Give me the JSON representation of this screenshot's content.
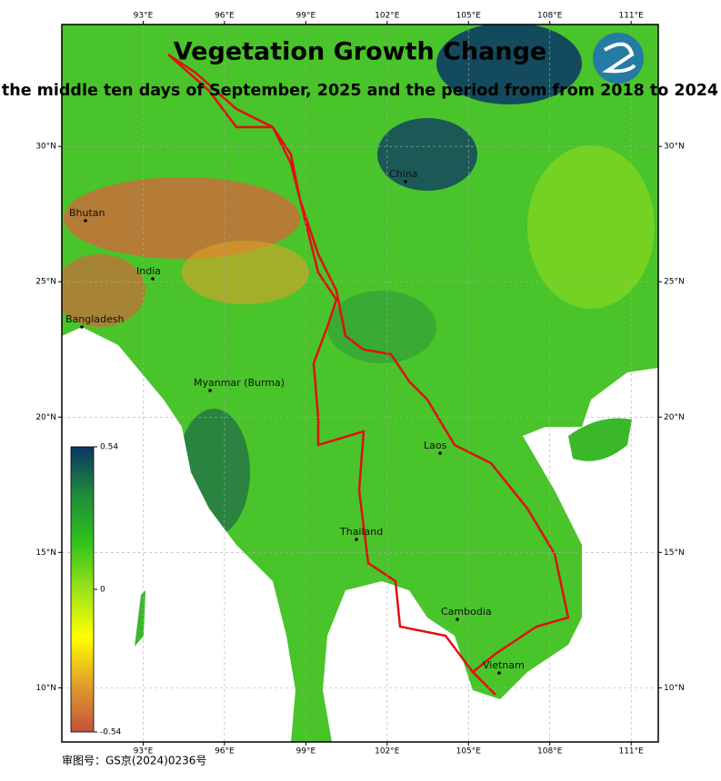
{
  "title": "Vegetation Growth Change",
  "subtitle": "the middle ten days of September, 2025 and the period from from 2018 to 2024",
  "map": {
    "xlim": [
      90,
      112
    ],
    "ylim": [
      8,
      34.5
    ],
    "xticks": [
      {
        "value": 93,
        "label": "93°E"
      },
      {
        "value": 96,
        "label": "96°E"
      },
      {
        "value": 99,
        "label": "99°E"
      },
      {
        "value": 102,
        "label": "102°E"
      },
      {
        "value": 105,
        "label": "105°E"
      },
      {
        "value": 108,
        "label": "108°E"
      },
      {
        "value": 111,
        "label": "111°E"
      }
    ],
    "yticks": [
      {
        "value": 10,
        "label": "10°N"
      },
      {
        "value": 15,
        "label": "15°N"
      },
      {
        "value": 20,
        "label": "20°N"
      },
      {
        "value": 25,
        "label": "25°N"
      },
      {
        "value": 30,
        "label": "30°N"
      }
    ],
    "grid": true,
    "places": [
      "Bhutan",
      "India",
      "Bangladesh",
      "Myanmar (Burma)",
      "China",
      "Laos",
      "Thailand",
      "Cambodia",
      "Vietnam"
    ]
  },
  "colorbar": {
    "lim": [
      -0.54,
      0.54
    ],
    "ticks": [
      0.54,
      0,
      -0.54
    ],
    "colors": [
      "#c4513a",
      "#e0a02a",
      "#ffff00",
      "#9be21a",
      "#2fc21a",
      "#1e8a3a",
      "#0b3566"
    ]
  },
  "footer": "审图号：GS京(2024)0236号"
}
